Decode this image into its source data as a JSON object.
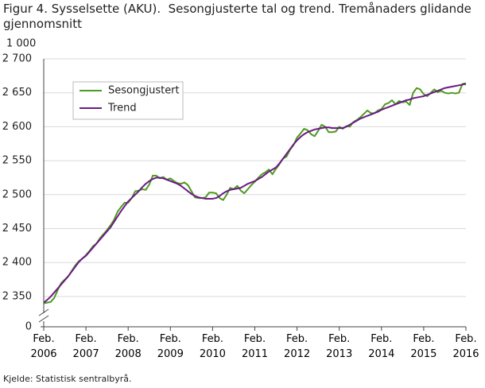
{
  "chart_data": {
    "type": "line",
    "title": "Figur 4. Sysselsette (AKU).  Sesongjusterte tal og trend. Tremånaders glidande gjennomsnitt",
    "y_label": "1 000",
    "source": "Kjelde: Statistisk sentralbyrå.",
    "categories": [
      "Feb. 2006",
      null,
      null,
      null,
      null,
      null,
      null,
      null,
      null,
      null,
      null,
      null,
      "Feb. 2007",
      null,
      null,
      null,
      null,
      null,
      null,
      null,
      null,
      null,
      null,
      null,
      "Feb. 2008",
      null,
      null,
      null,
      null,
      null,
      null,
      null,
      null,
      null,
      null,
      null,
      "Feb. 2009",
      null,
      null,
      null,
      null,
      null,
      null,
      null,
      null,
      null,
      null,
      null,
      "Feb. 2010",
      null,
      null,
      null,
      null,
      null,
      null,
      null,
      null,
      null,
      null,
      null,
      "Feb. 2011",
      null,
      null,
      null,
      null,
      null,
      null,
      null,
      null,
      null,
      null,
      null,
      "Feb. 2012",
      null,
      null,
      null,
      null,
      null,
      null,
      null,
      null,
      null,
      null,
      null,
      "Feb. 2013",
      null,
      null,
      null,
      null,
      null,
      null,
      null,
      null,
      null,
      null,
      null,
      "Feb. 2014",
      null,
      null,
      null,
      null,
      null,
      null,
      null,
      null,
      null,
      null,
      null,
      "Feb. 2015",
      null,
      null,
      null,
      null,
      null,
      null,
      null,
      null,
      null,
      null,
      null,
      "Feb. 2016"
    ],
    "series": [
      {
        "name": "Sesongjustert",
        "color": "#4e9a1e",
        "values": [
          2340,
          2341,
          2342,
          2348,
          2360,
          2370,
          2375,
          2380,
          2388,
          2396,
          2402,
          2406,
          2411,
          2417,
          2424,
          2428,
          2436,
          2442,
          2448,
          2455,
          2463,
          2475,
          2482,
          2488,
          2488,
          2495,
          2505,
          2506,
          2508,
          2507,
          2515,
          2528,
          2528,
          2524,
          2526,
          2522,
          2524,
          2520,
          2517,
          2516,
          2518,
          2514,
          2505,
          2496,
          2495,
          2495,
          2496,
          2503,
          2503,
          2502,
          2495,
          2492,
          2500,
          2510,
          2508,
          2513,
          2506,
          2502,
          2508,
          2514,
          2519,
          2525,
          2530,
          2533,
          2537,
          2530,
          2538,
          2545,
          2553,
          2556,
          2566,
          2573,
          2584,
          2590,
          2597,
          2595,
          2589,
          2586,
          2594,
          2603,
          2600,
          2592,
          2592,
          2593,
          2600,
          2597,
          2601,
          2600,
          2607,
          2610,
          2614,
          2619,
          2624,
          2620,
          2620,
          2624,
          2626,
          2633,
          2635,
          2639,
          2633,
          2638,
          2636,
          2637,
          2632,
          2650,
          2657,
          2655,
          2648,
          2645,
          2650,
          2655,
          2651,
          2653,
          2650,
          2649,
          2650,
          2649,
          2650,
          2663,
          2664
        ]
      },
      {
        "name": "Trend",
        "color": "#6b1a87",
        "values": [
          2341,
          2345,
          2350,
          2356,
          2362,
          2368,
          2374,
          2380,
          2387,
          2394,
          2401,
          2406,
          2410,
          2416,
          2422,
          2428,
          2434,
          2440,
          2446,
          2452,
          2460,
          2468,
          2476,
          2483,
          2490,
          2495,
          2500,
          2505,
          2511,
          2516,
          2520,
          2523,
          2525,
          2525,
          2524,
          2522,
          2520,
          2518,
          2516,
          2513,
          2509,
          2505,
          2501,
          2498,
          2496,
          2495,
          2494,
          2494,
          2494,
          2495,
          2498,
          2502,
          2505,
          2507,
          2508,
          2509,
          2510,
          2513,
          2516,
          2518,
          2520,
          2523,
          2526,
          2530,
          2534,
          2537,
          2540,
          2546,
          2553,
          2560,
          2567,
          2574,
          2580,
          2585,
          2589,
          2592,
          2594,
          2596,
          2597,
          2598,
          2599,
          2599,
          2598,
          2598,
          2598,
          2598,
          2600,
          2603,
          2606,
          2609,
          2612,
          2614,
          2616,
          2618,
          2620,
          2622,
          2625,
          2627,
          2629,
          2631,
          2633,
          2635,
          2637,
          2639,
          2640,
          2642,
          2643,
          2644,
          2645,
          2647,
          2649,
          2651,
          2653,
          2655,
          2657,
          2658,
          2659,
          2660,
          2661,
          2662,
          2663
        ]
      }
    ],
    "ylim": [
      2330,
      2700
    ],
    "yticks": [
      0,
      {
        "value": 2350,
        "label": "2 350"
      },
      {
        "value": 2400,
        "label": "2 400"
      },
      {
        "value": 2450,
        "label": "2 450"
      },
      {
        "value": 2500,
        "label": "2 500"
      },
      {
        "value": 2550,
        "label": "2 550"
      },
      {
        "value": 2600,
        "label": "2 600"
      },
      {
        "value": 2650,
        "label": "2 650"
      },
      {
        "value": 2700,
        "label": "2 700"
      }
    ],
    "axis_break": true,
    "grid": true,
    "legend": "upper-left"
  }
}
